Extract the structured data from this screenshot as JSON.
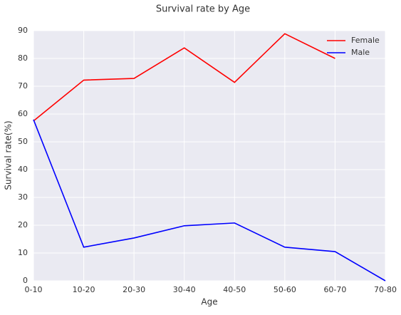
{
  "chart_data": {
    "type": "line",
    "title": "Survival rate by Age",
    "x_label": "Age",
    "y_label": "Survival rate(%)",
    "categories": [
      "0-10",
      "10-20",
      "20-30",
      "30-40",
      "40-50",
      "50-60",
      "60-70",
      "70-80"
    ],
    "series": [
      {
        "name": "Female",
        "color": "#ff0000",
        "values": [
          57.5,
          72.2,
          72.8,
          83.8,
          71.4,
          88.9,
          80.0,
          null
        ]
      },
      {
        "name": "Male",
        "color": "#0000ff",
        "values": [
          58.0,
          12.1,
          15.4,
          19.8,
          20.8,
          12.1,
          10.5,
          0.0
        ]
      }
    ],
    "ylim": [
      0,
      90
    ],
    "yticks": [
      0,
      10,
      20,
      30,
      40,
      50,
      60,
      70,
      80,
      90
    ],
    "grid": true,
    "legend": "upper right"
  }
}
